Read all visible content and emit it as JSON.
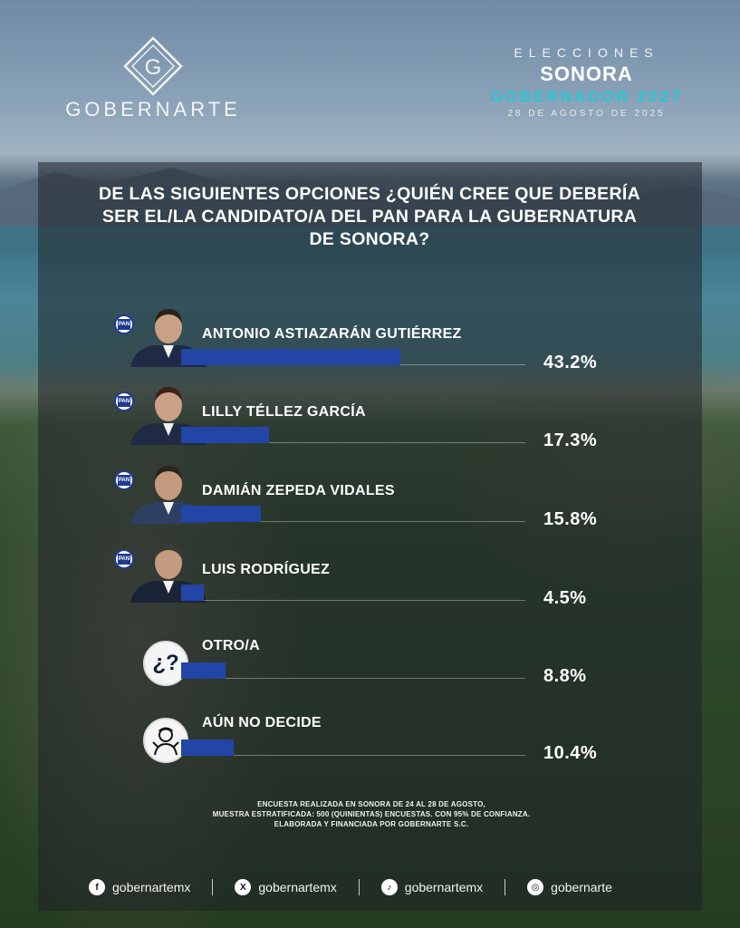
{
  "brand": {
    "name": "GOBERNARTE",
    "mark": "G"
  },
  "header": {
    "line1": "ELECCIONES",
    "line2": "SONORA",
    "line3": "GOBERNADOR 2027",
    "line4": "28 DE AGOSTO DE 2025"
  },
  "question": {
    "part1": "DE LAS SIGUIENTES OPCIONES ¿QUIÉN CREE QUE DEBERÍA SER EL/LA CANDIDATO/A DEL ",
    "highlight": "PAN",
    "part2": " PARA LA GUBERNATURA DE SONORA?"
  },
  "chart_data": {
    "type": "bar",
    "title": "DE LAS SIGUIENTES OPCIONES ¿QUIÉN CREE QUE DEBERÍA SER EL/LA CANDIDATO/A DEL PAN PARA LA GUBERNATURA DE SONORA?",
    "categories": [
      "ANTONIO ASTIAZARÁN GUTIÉRREZ",
      "LILLY TÉLLEZ GARCÍA",
      "DAMIÁN ZEPEDA VIDALES",
      "LUIS RODRÍGUEZ",
      "OTRO/A",
      "AÚN NO DECIDE"
    ],
    "values": [
      43.2,
      17.3,
      15.8,
      4.5,
      8.8,
      10.4
    ],
    "labels": [
      "43.2%",
      "17.3%",
      "15.8%",
      "4.5%",
      "8.8%",
      "10.4%"
    ],
    "unit": "%",
    "bar_color": "#2245a6",
    "icons": [
      "pan-logo",
      "pan-logo",
      "pan-logo",
      "pan-logo",
      "question-icon",
      "undecided-person-icon"
    ]
  },
  "pan_logo_text": "PAN",
  "other_glyph": "¿?",
  "footnote": {
    "line1_a": "ENCUESTA REALIZADA EN SONORA DE ",
    "line1_b": "24 AL 28 DE AGOSTO,",
    "line2_a": "MUESTRA ESTRATIFICADA: 500 (QUINIENTAS) ENCUESTAS. ",
    "line2_b": "CON 95% DE CONFIANZA.",
    "line3_a": "ELABORADA Y FINANCIADA POR ",
    "line3_b": "GOBERNARTE S.C."
  },
  "socials": [
    {
      "icon": "facebook-icon",
      "glyph": "f",
      "handle": "gobernartemx"
    },
    {
      "icon": "x-icon",
      "glyph": "X",
      "handle": "gobernartemx"
    },
    {
      "icon": "tiktok-icon",
      "glyph": "♪",
      "handle": "gobernartemx"
    },
    {
      "icon": "instagram-icon",
      "glyph": "◎",
      "handle": "gobernarte"
    }
  ],
  "colors": {
    "accent": "#25c7d6",
    "bar": "#2245a6",
    "pan_blue": "#1f3b8f"
  }
}
